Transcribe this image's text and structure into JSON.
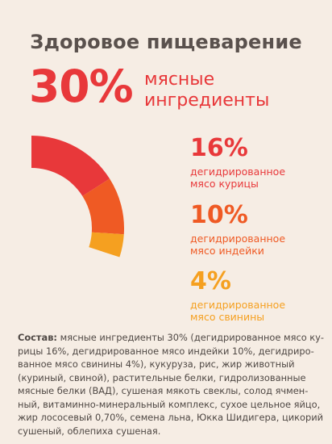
{
  "title": "Здоровое пищеварение",
  "headline": {
    "percent": "30%",
    "label_line1": "мясные",
    "label_line2": "ингредиенты"
  },
  "chart_data": {
    "type": "pie",
    "title": "",
    "unit": "%",
    "slices": [
      {
        "name": "дегидрированное мясо курицы",
        "value": 16,
        "label": "16%",
        "desc_line1": "дегидрированное",
        "desc_line2": "мясо курицы",
        "color": "#e8383a"
      },
      {
        "name": "дегидрированное мясо индейки",
        "value": 10,
        "label": "10%",
        "desc_line1": "дегидрированное",
        "desc_line2": "мясо индейки",
        "color": "#ef5a24"
      },
      {
        "name": "дегидрированное мясо свинины",
        "value": 4,
        "label": "4%",
        "desc_line1": "дегидрированное",
        "desc_line2": "мясо свинины",
        "color": "#f5a020"
      }
    ]
  },
  "composition": {
    "label": "Состав:",
    "lines": [
      " мясные ингредиенты 30% (дегидрированное мясо ку-",
      "рицы 16%, дегидрированное мясо индейки 10%, дегидриро-",
      "ванное мясо свинины 4%), кукуруза, рис, жир животный",
      "(куриный, свиной), растительные белки, гидролизованные",
      "мясные белки (ВАД), сушеная мякоть свеклы, солод ячмен-",
      "ный, витаминно-минеральный комплекс, сухое цельное яйцо,",
      "жир лососевый 0,70%, семена льна, Юкка Шидигера, цикорий",
      "сушеный, облепиха сушеная."
    ]
  }
}
